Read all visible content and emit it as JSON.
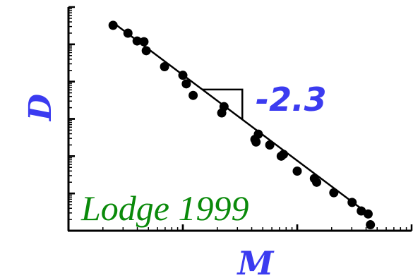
{
  "chart_data": {
    "type": "scatter",
    "title": "",
    "xlabel": "M",
    "ylabel": "D",
    "xscale": "log",
    "yscale": "log",
    "xlim": [
      0,
      3
    ],
    "ylim": [
      -6,
      0
    ],
    "x_decades": 3,
    "y_decades": 6,
    "grid": false,
    "legend": "none",
    "point_color": "#000000",
    "label_color": "#3b3bf0",
    "reference_color": "#0a8a0a",
    "series": [
      {
        "x": [
          0.39,
          0.52,
          0.6,
          0.66,
          0.68,
          0.84,
          1.0,
          1.03,
          1.09,
          1.34,
          1.36,
          1.66,
          1.63,
          1.64,
          1.76,
          1.86,
          1.88,
          2.0,
          2.15,
          2.17,
          2.32,
          2.48,
          2.56,
          2.62,
          2.64
        ],
        "y": [
          -0.49,
          -0.7,
          -0.91,
          -0.93,
          -1.17,
          -1.6,
          -1.83,
          -2.06,
          -2.37,
          -2.84,
          -2.67,
          -3.41,
          -3.55,
          -3.62,
          -3.7,
          -4.0,
          -3.95,
          -4.4,
          -4.6,
          -4.7,
          -4.98,
          -5.24,
          -5.47,
          -5.55,
          -5.84
        ]
      }
    ],
    "fit": {
      "slope": -2.3,
      "intercept": 0.48,
      "x_range": [
        0.39,
        2.64
      ]
    },
    "annotations": {
      "slope_label": "-2.3",
      "reference": "Lodge 1999"
    }
  }
}
